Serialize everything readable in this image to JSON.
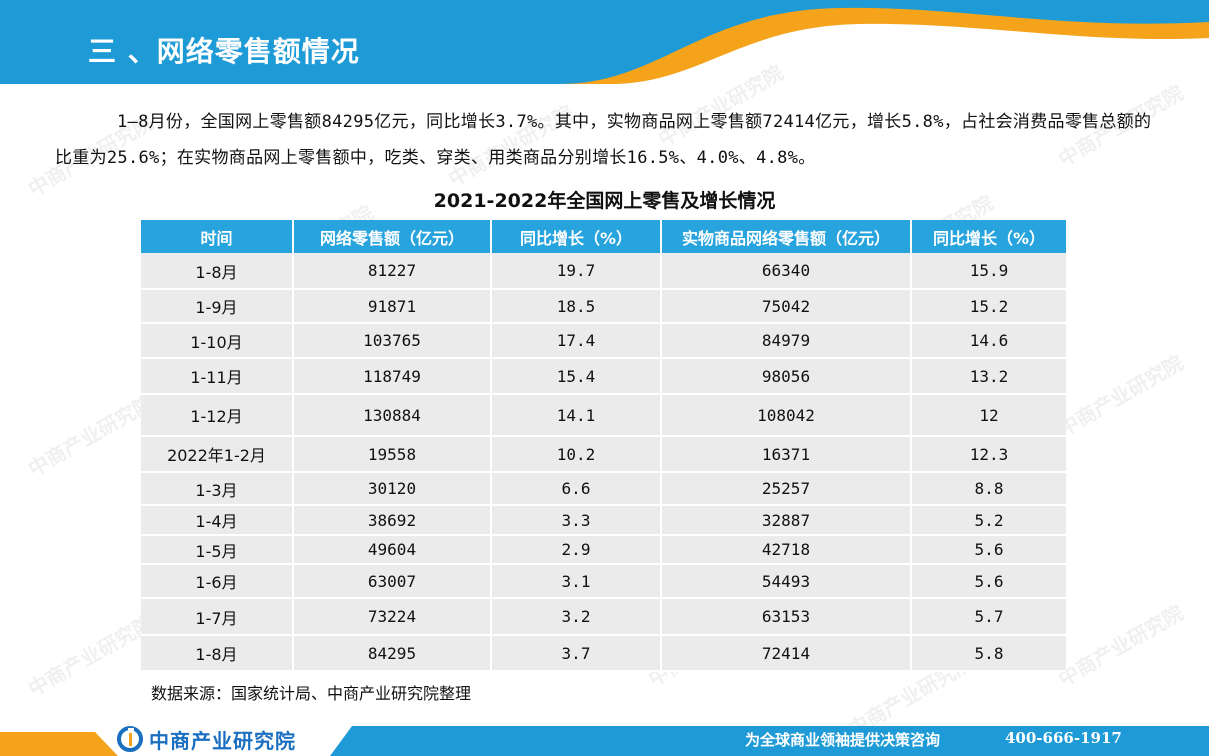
{
  "header": {
    "title": "三 、网络零售额情况"
  },
  "paragraph": "1—8月份，全国网上零售额84295亿元，同比增长3.7%。其中，实物商品网上零售额72414亿元，增长5.8%，占社会消费品零售总额的比重为25.6%；在实物商品网上零售额中，吃类、穿类、用类商品分别增长16.5%、4.0%、4.8%。",
  "table": {
    "title": "2021-2022年全国网上零售及增长情况",
    "headers": [
      "时间",
      "网络零售额（亿元）",
      "同比增长（%）",
      "实物商品网络零售额（亿元）",
      "同比增长（%）"
    ],
    "rows": [
      [
        "1-8月",
        "81227",
        "19.7",
        "66340",
        "15.9"
      ],
      [
        "1-9月",
        "91871",
        "18.5",
        "75042",
        "15.2"
      ],
      [
        "1-10月",
        "103765",
        "17.4",
        "84979",
        "14.6"
      ],
      [
        "1-11月",
        "118749",
        "15.4",
        "98056",
        "13.2"
      ],
      [
        "1-12月",
        "130884",
        "14.1",
        "108042",
        "12"
      ],
      [
        "2022年1-2月",
        "19558",
        "10.2",
        "16371",
        "12.3"
      ],
      [
        "1-3月",
        "30120",
        "6.6",
        "25257",
        "8.8"
      ],
      [
        "1-4月",
        "38692",
        "3.3",
        "32887",
        "5.2"
      ],
      [
        "1-5月",
        "49604",
        "2.9",
        "42718",
        "5.6"
      ],
      [
        "1-6月",
        "63007",
        "3.1",
        "54493",
        "5.6"
      ],
      [
        "1-7月",
        "73224",
        "3.2",
        "63153",
        "5.7"
      ],
      [
        "1-8月",
        "84295",
        "3.7",
        "72414",
        "5.8"
      ]
    ]
  },
  "source": "数据来源：国家统计局、中商产业研究院整理",
  "footer": {
    "logo_text": "中商产业研究院",
    "slogan": "为全球商业领袖提供决策咨询",
    "phone": "400-666-1917"
  },
  "watermark": "中商产业研究院",
  "colors": {
    "header_blue": "#1E9AD6",
    "accent_orange": "#F5A31A",
    "table_header": "#27A3DD",
    "table_cell": "#EBEBEB",
    "logo_blue": "#1A6FC0"
  }
}
